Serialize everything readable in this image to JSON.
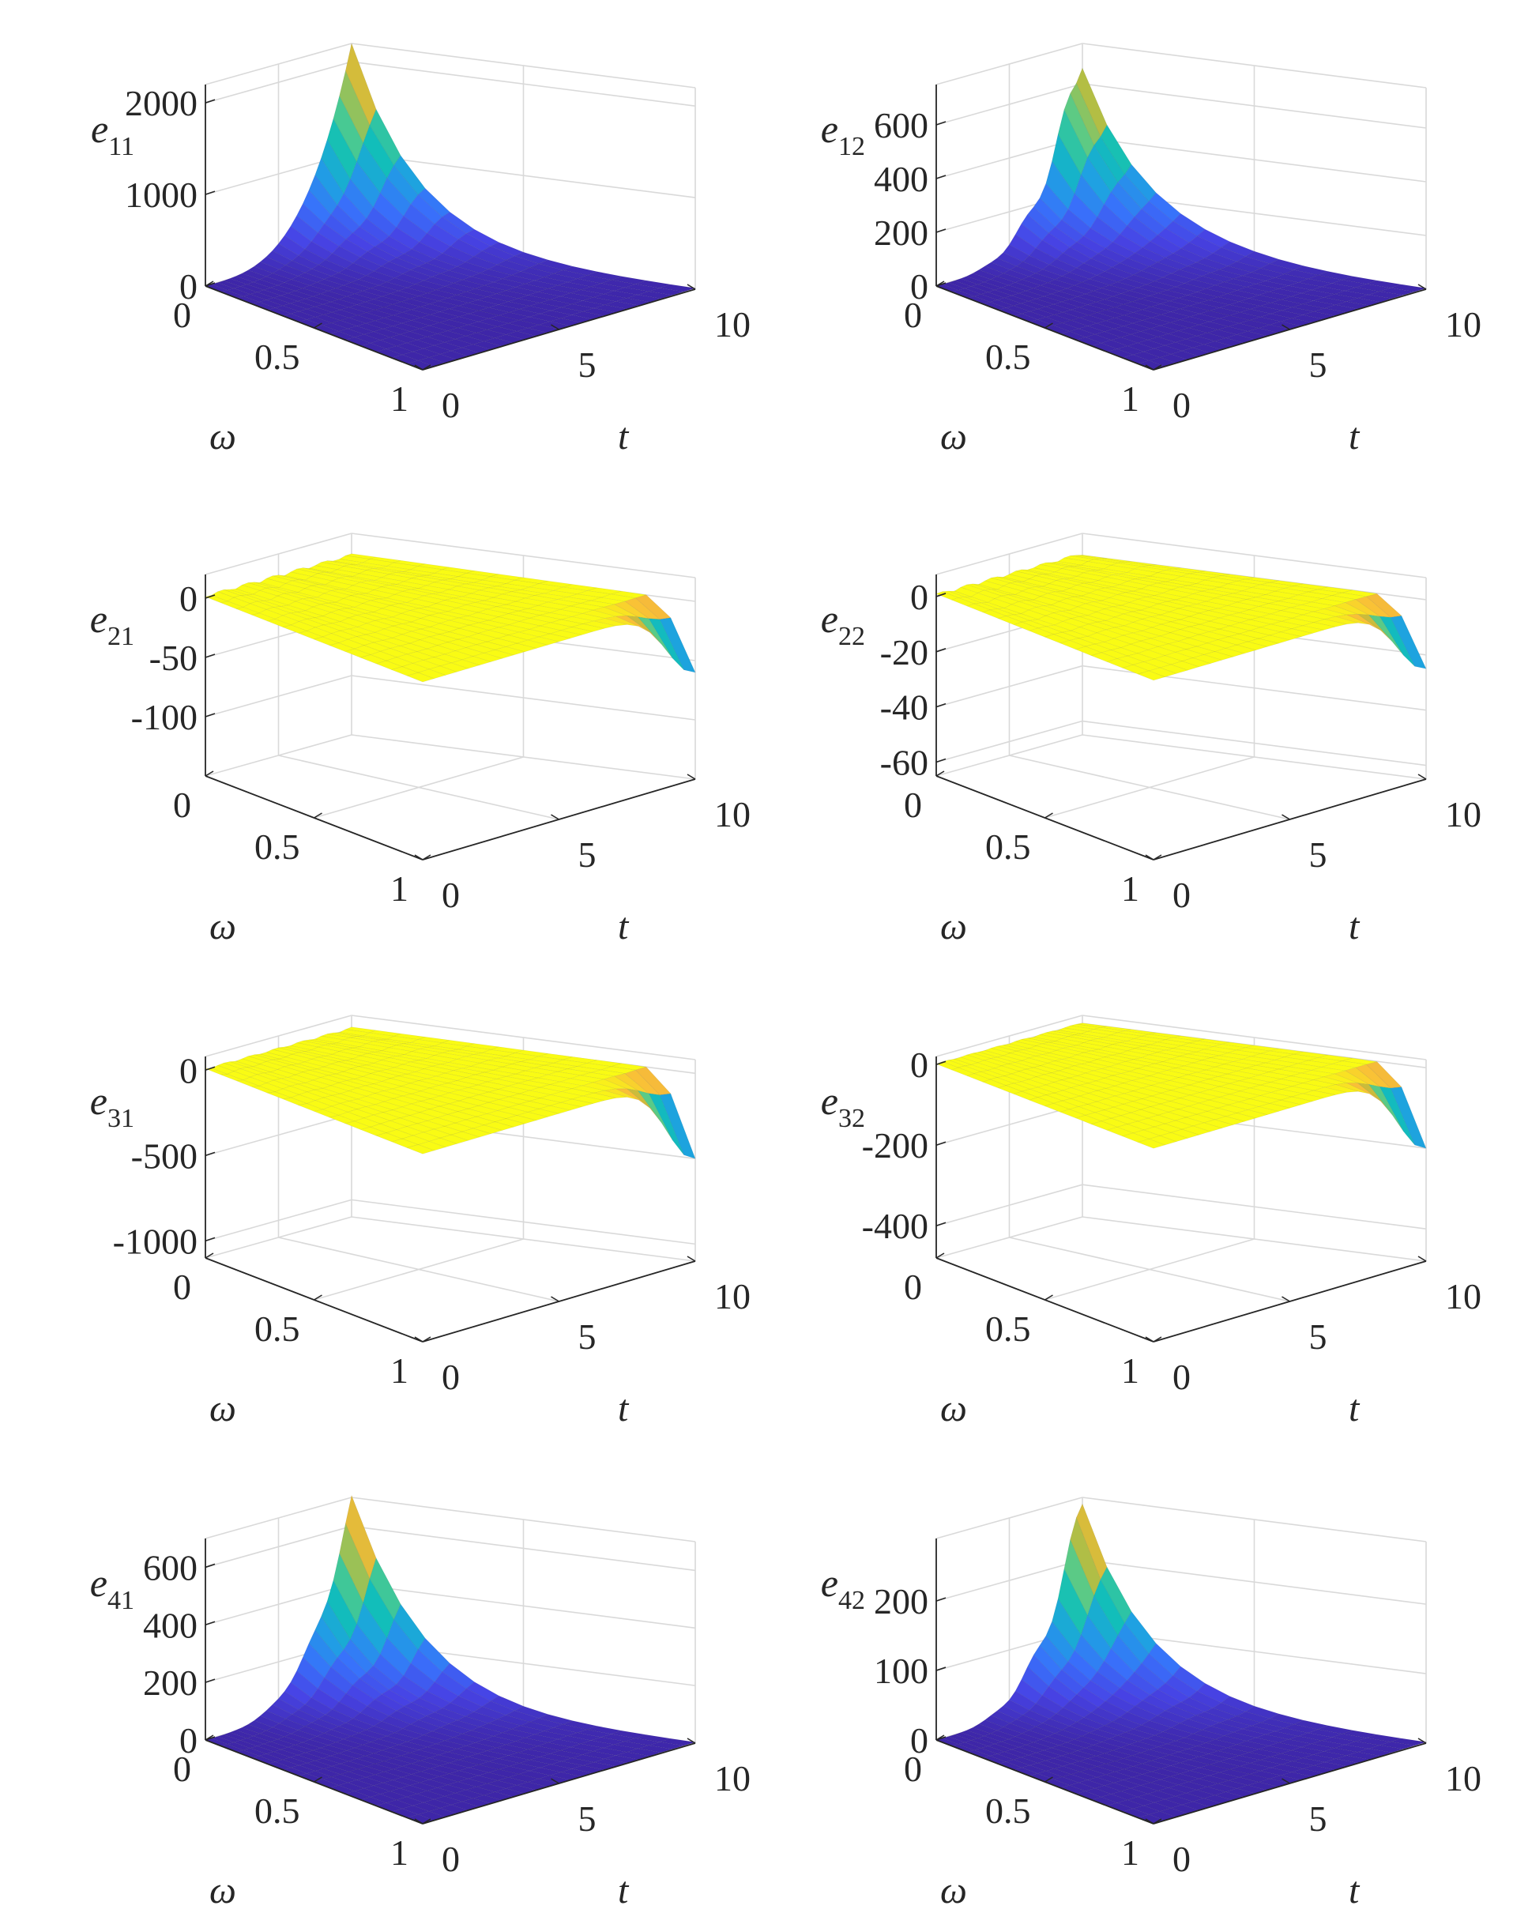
{
  "figure": {
    "colormap": [
      "#3e26a8",
      "#4743e5",
      "#3871fb",
      "#1fa0e3",
      "#11bfb8",
      "#55cb8a",
      "#bfbc3b",
      "#f9bb3a",
      "#f9fb14"
    ],
    "grid": true,
    "x_axis": {
      "label": "ω",
      "ticks": [
        "0",
        "0.5",
        "1"
      ],
      "range": [
        0,
        1
      ]
    },
    "y_axis": {
      "label": "t",
      "ticks": [
        "0",
        "5",
        "10"
      ],
      "range": [
        0,
        10
      ]
    }
  },
  "chart_data": [
    {
      "type": "surface",
      "title": "",
      "zlabel_base": "e",
      "zlabel_sub": "11",
      "xlabel": "ω",
      "ylabel": "t",
      "xlim": [
        0,
        1
      ],
      "ylim": [
        0,
        10
      ],
      "zlim": [
        0,
        2200
      ],
      "z_ticks": [
        0,
        1000,
        2000
      ],
      "z_tick_labels": [
        "0",
        "1000",
        "2000"
      ],
      "shape": "peak",
      "peak_value": 2200,
      "peak_at": {
        "omega": 0,
        "t": 10
      }
    },
    {
      "type": "surface",
      "title": "",
      "zlabel_base": "e",
      "zlabel_sub": "12",
      "xlabel": "ω",
      "ylabel": "t",
      "xlim": [
        0,
        1
      ],
      "ylim": [
        0,
        10
      ],
      "zlim": [
        0,
        750
      ],
      "z_ticks": [
        0,
        200,
        400,
        600
      ],
      "z_tick_labels": [
        "0",
        "200",
        "400",
        "600"
      ],
      "shape": "peak",
      "peak_value": 730,
      "peak_at": {
        "omega": 0,
        "t": 10
      }
    },
    {
      "type": "surface",
      "title": "",
      "zlabel_base": "e",
      "zlabel_sub": "21",
      "xlabel": "ω",
      "ylabel": "t",
      "xlim": [
        0,
        1
      ],
      "ylim": [
        0,
        10
      ],
      "zlim": [
        -150,
        20
      ],
      "z_ticks": [
        0,
        -50,
        -100
      ],
      "z_tick_labels": [
        "0",
        "-50",
        "-100"
      ],
      "shape": "dip",
      "dip_value": -60,
      "dip_at": {
        "omega": 1,
        "t": 10
      }
    },
    {
      "type": "surface",
      "title": "",
      "zlabel_base": "e",
      "zlabel_sub": "22",
      "xlabel": "ω",
      "ylabel": "t",
      "xlim": [
        0,
        1
      ],
      "ylim": [
        0,
        10
      ],
      "zlim": [
        -65,
        8
      ],
      "z_ticks": [
        0,
        -20,
        -40,
        -60
      ],
      "z_tick_labels": [
        "0",
        "-20",
        "-40",
        "-60"
      ],
      "shape": "dip",
      "dip_value": -25,
      "dip_at": {
        "omega": 1,
        "t": 10
      }
    },
    {
      "type": "surface",
      "title": "",
      "zlabel_base": "e",
      "zlabel_sub": "31",
      "xlabel": "ω",
      "ylabel": "t",
      "xlim": [
        0,
        1
      ],
      "ylim": [
        0,
        10
      ],
      "zlim": [
        -1100,
        80
      ],
      "z_ticks": [
        0,
        -500,
        -1000
      ],
      "z_tick_labels": [
        "0",
        "-500",
        "-1000"
      ],
      "shape": "dip",
      "dip_value": -500,
      "dip_at": {
        "omega": 1,
        "t": 10
      }
    },
    {
      "type": "surface",
      "title": "",
      "zlabel_base": "e",
      "zlabel_sub": "32",
      "xlabel": "ω",
      "ylabel": "t",
      "xlim": [
        0,
        1
      ],
      "ylim": [
        0,
        10
      ],
      "zlim": [
        -480,
        20
      ],
      "z_ticks": [
        0,
        -200,
        -400
      ],
      "z_tick_labels": [
        "0",
        "-200",
        "-400"
      ],
      "shape": "dip",
      "dip_value": -200,
      "dip_at": {
        "omega": 1,
        "t": 10
      }
    },
    {
      "type": "surface",
      "title": "",
      "zlabel_base": "e",
      "zlabel_sub": "41",
      "xlabel": "ω",
      "ylabel": "t",
      "xlim": [
        0,
        1
      ],
      "ylim": [
        0,
        10
      ],
      "zlim": [
        0,
        700
      ],
      "z_ticks": [
        0,
        200,
        400,
        600
      ],
      "z_tick_labels": [
        "0",
        "200",
        "400",
        "600"
      ],
      "shape": "peak",
      "peak_value": 680,
      "peak_at": {
        "omega": 0,
        "t": 10
      }
    },
    {
      "type": "surface",
      "title": "",
      "zlabel_base": "e",
      "zlabel_sub": "42",
      "xlabel": "ω",
      "ylabel": "t",
      "xlim": [
        0,
        1
      ],
      "ylim": [
        0,
        10
      ],
      "zlim": [
        0,
        290
      ],
      "z_ticks": [
        0,
        100,
        200
      ],
      "z_tick_labels": [
        "0",
        "100",
        "200"
      ],
      "shape": "peak",
      "peak_value": 285,
      "peak_at": {
        "omega": 0,
        "t": 10
      }
    }
  ]
}
